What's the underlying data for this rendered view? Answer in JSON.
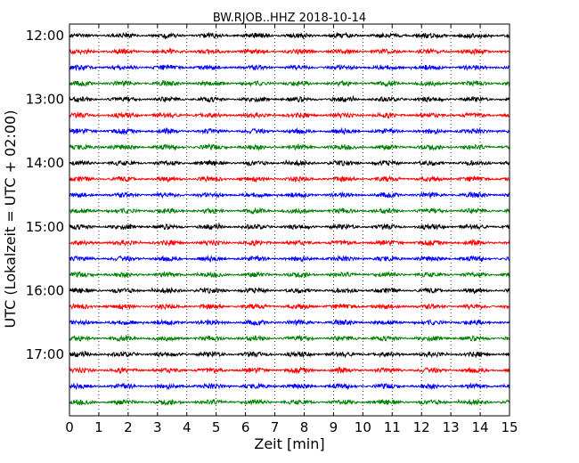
{
  "chart_data": {
    "type": "line",
    "title": "BW.RJOB..HHZ 2018-10-14",
    "xlabel": "Zeit  [min]",
    "ylabel": "UTC (Lokalzeit = UTC + 02:00)",
    "xlim": [
      0,
      15
    ],
    "x_ticks": [
      "0",
      "1",
      "2",
      "3",
      "4",
      "5",
      "6",
      "7",
      "8",
      "9",
      "10",
      "11",
      "12",
      "13",
      "14",
      "15"
    ],
    "y_tick_labels": [
      "12:00",
      "13:00",
      "14:00",
      "15:00",
      "16:00",
      "17:00"
    ],
    "grid": "vertical dotted at each minute",
    "trace_interval_minutes": 15,
    "traces_per_hour": 4,
    "start_time": "12:00",
    "end_time": "17:45",
    "trace_colors": [
      "#000000",
      "#ff0000",
      "#0000ff",
      "#008000"
    ],
    "series": [
      {
        "start": "12:00",
        "color": "#000000"
      },
      {
        "start": "12:15",
        "color": "#ff0000"
      },
      {
        "start": "12:30",
        "color": "#0000ff"
      },
      {
        "start": "12:45",
        "color": "#008000"
      },
      {
        "start": "13:00",
        "color": "#000000"
      },
      {
        "start": "13:15",
        "color": "#ff0000"
      },
      {
        "start": "13:30",
        "color": "#0000ff"
      },
      {
        "start": "13:45",
        "color": "#008000"
      },
      {
        "start": "14:00",
        "color": "#000000"
      },
      {
        "start": "14:15",
        "color": "#ff0000"
      },
      {
        "start": "14:30",
        "color": "#0000ff"
      },
      {
        "start": "14:45",
        "color": "#008000"
      },
      {
        "start": "15:00",
        "color": "#000000"
      },
      {
        "start": "15:15",
        "color": "#ff0000"
      },
      {
        "start": "15:30",
        "color": "#0000ff"
      },
      {
        "start": "15:45",
        "color": "#008000"
      },
      {
        "start": "16:00",
        "color": "#000000"
      },
      {
        "start": "16:15",
        "color": "#ff0000"
      },
      {
        "start": "16:30",
        "color": "#0000ff"
      },
      {
        "start": "16:45",
        "color": "#008000"
      },
      {
        "start": "17:00",
        "color": "#000000"
      },
      {
        "start": "17:15",
        "color": "#ff0000"
      },
      {
        "start": "17:30",
        "color": "#0000ff"
      },
      {
        "start": "17:45",
        "color": "#008000"
      }
    ]
  }
}
